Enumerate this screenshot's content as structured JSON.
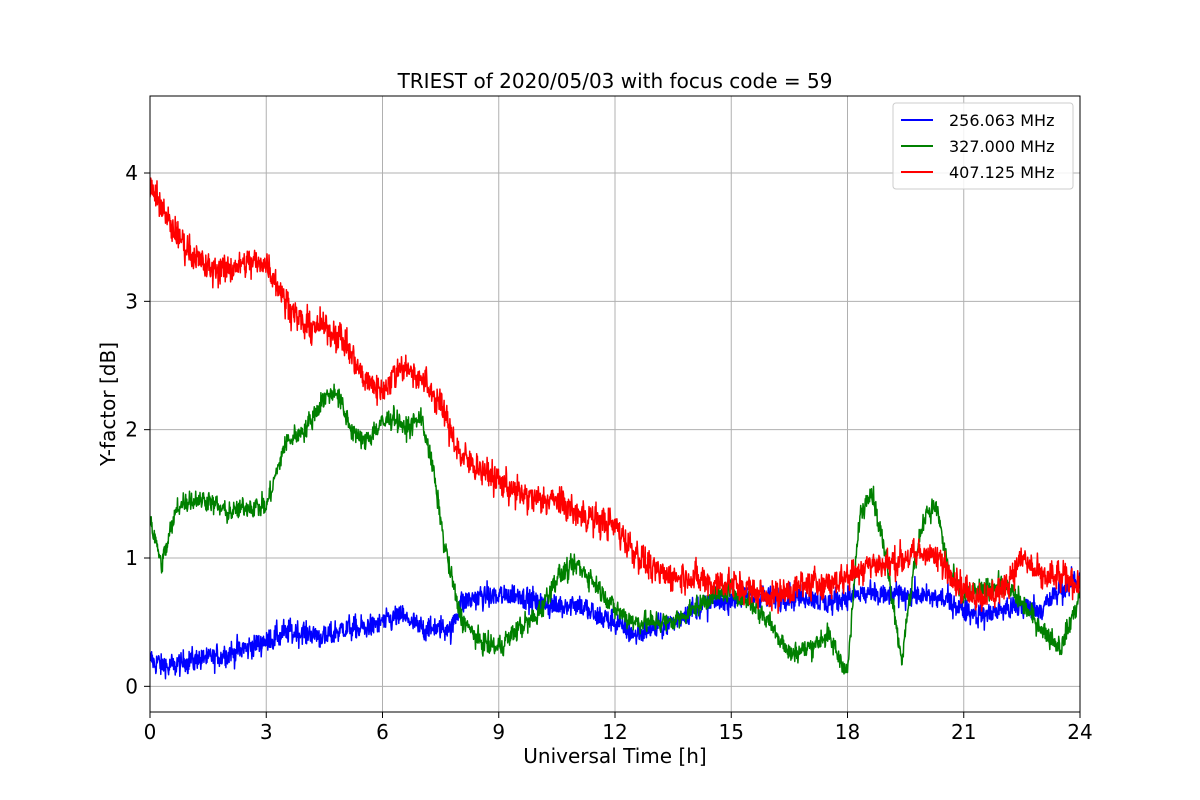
{
  "chart_data": {
    "type": "line",
    "title": "TRIEST of 2020/05/03 with focus code = 59",
    "xlabel": "Universal Time [h]",
    "ylabel": "Y-factor [dB]",
    "xlim": [
      0,
      24
    ],
    "ylim": [
      -0.2,
      4.6
    ],
    "xticks": [
      0,
      3,
      6,
      9,
      12,
      15,
      18,
      21,
      24
    ],
    "xtick_labels": [
      "0",
      "3",
      "6",
      "9",
      "12",
      "15",
      "18",
      "21",
      "24"
    ],
    "yticks": [
      0,
      1,
      2,
      3,
      4
    ],
    "ytick_labels": [
      "0",
      "1",
      "2",
      "3",
      "4"
    ],
    "grid": true,
    "legend_position": "top-right",
    "series": [
      {
        "name": "256.063 MHz",
        "color": "#0000ff",
        "noise": 0.08,
        "x": [
          0,
          0.5,
          1,
          1.5,
          2,
          2.5,
          3,
          3.5,
          4,
          4.5,
          5,
          5.5,
          6,
          6.5,
          7,
          7.5,
          7.8,
          8,
          8.5,
          9,
          9.5,
          10,
          10.5,
          11,
          11.5,
          12,
          12.5,
          13,
          13.5,
          14,
          14.5,
          15,
          15.5,
          16,
          16.5,
          17,
          17.5,
          18,
          18.5,
          19,
          19.5,
          20,
          20.5,
          21,
          21.5,
          22,
          22.5,
          23,
          23.5,
          24
        ],
        "y": [
          0.2,
          0.15,
          0.2,
          0.22,
          0.25,
          0.3,
          0.35,
          0.42,
          0.42,
          0.38,
          0.45,
          0.45,
          0.5,
          0.55,
          0.45,
          0.45,
          0.45,
          0.65,
          0.7,
          0.7,
          0.72,
          0.65,
          0.62,
          0.65,
          0.55,
          0.5,
          0.4,
          0.45,
          0.5,
          0.6,
          0.65,
          0.68,
          0.7,
          0.68,
          0.7,
          0.7,
          0.65,
          0.7,
          0.72,
          0.7,
          0.72,
          0.7,
          0.68,
          0.6,
          0.55,
          0.6,
          0.62,
          0.6,
          0.75,
          0.85
        ]
      },
      {
        "name": "327.000 MHz",
        "color": "#008000",
        "noise": 0.07,
        "x": [
          0,
          0.3,
          0.7,
          1,
          1.5,
          2,
          2.5,
          3,
          3.5,
          4,
          4.5,
          4.8,
          5.2,
          5.5,
          6,
          6.3,
          6.6,
          7,
          7.3,
          7.6,
          8,
          8.5,
          9,
          9.5,
          10,
          10.5,
          11,
          11.5,
          12,
          12.5,
          13,
          13.5,
          14,
          14.5,
          15,
          15.5,
          16,
          16.5,
          17,
          17.5,
          18,
          18.3,
          18.6,
          19,
          19.4,
          19.7,
          20,
          20.3,
          20.6,
          21,
          21.5,
          22,
          22.5,
          23,
          23.5,
          24
        ],
        "y": [
          1.3,
          0.95,
          1.4,
          1.45,
          1.45,
          1.35,
          1.4,
          1.4,
          1.9,
          2.0,
          2.25,
          2.3,
          2.0,
          1.9,
          2.05,
          2.1,
          2.0,
          2.1,
          1.7,
          1.1,
          0.55,
          0.35,
          0.3,
          0.45,
          0.55,
          0.85,
          0.95,
          0.8,
          0.6,
          0.5,
          0.5,
          0.5,
          0.6,
          0.7,
          0.75,
          0.65,
          0.5,
          0.25,
          0.3,
          0.4,
          0.1,
          1.3,
          1.55,
          1.0,
          0.2,
          0.9,
          1.35,
          1.4,
          0.9,
          0.7,
          0.75,
          0.8,
          0.65,
          0.45,
          0.3,
          0.7
        ]
      },
      {
        "name": "407.125 MHz",
        "color": "#ff0000",
        "noise": 0.1,
        "x": [
          0,
          0.2,
          0.5,
          1,
          1.5,
          2,
          2.5,
          3,
          3.5,
          4,
          4.5,
          5,
          5.5,
          6,
          6.5,
          7,
          7.5,
          8,
          8.5,
          9,
          9.5,
          10,
          10.5,
          11,
          11.5,
          12,
          12.5,
          13,
          13.5,
          14,
          14.5,
          15,
          15.5,
          16,
          16.5,
          17,
          17.5,
          18,
          18.5,
          19,
          19.5,
          20,
          20.5,
          21,
          21.5,
          22,
          22.5,
          23,
          23.5,
          24
        ],
        "y": [
          3.9,
          3.8,
          3.6,
          3.4,
          3.25,
          3.25,
          3.3,
          3.3,
          3.0,
          2.8,
          2.8,
          2.7,
          2.4,
          2.3,
          2.5,
          2.4,
          2.2,
          1.8,
          1.7,
          1.6,
          1.5,
          1.45,
          1.45,
          1.35,
          1.3,
          1.25,
          1.05,
          0.9,
          0.85,
          0.85,
          0.8,
          0.8,
          0.75,
          0.7,
          0.75,
          0.8,
          0.8,
          0.85,
          0.95,
          0.95,
          1.0,
          1.05,
          0.95,
          0.75,
          0.7,
          0.75,
          1.0,
          0.85,
          0.85,
          0.8
        ]
      }
    ]
  }
}
